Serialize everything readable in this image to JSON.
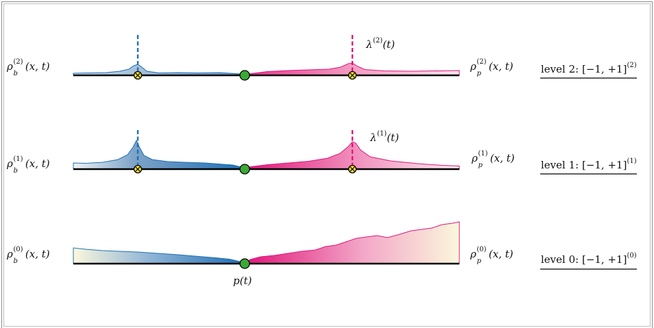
{
  "diagram": {
    "levels": [
      {
        "id": 2,
        "left_label": {
          "sym": "ρ",
          "sub": "b",
          "sup": "(2)",
          "args": "(x, t)"
        },
        "right_label": {
          "sym": "ρ",
          "sub": "p",
          "sup": "(2)",
          "args": "(x, t)"
        },
        "level_label": {
          "prefix": "level 2: ",
          "interval": "[−1, +1]",
          "sup": "(2)"
        },
        "lambda_label": {
          "sym": "λ",
          "sup": "(2)",
          "args": "(t)"
        }
      },
      {
        "id": 1,
        "left_label": {
          "sym": "ρ",
          "sub": "b",
          "sup": "(1)",
          "args": "(x, t)"
        },
        "right_label": {
          "sym": "ρ",
          "sub": "p",
          "sup": "(1)",
          "args": "(x, t)"
        },
        "level_label": {
          "prefix": "level 1: ",
          "interval": "[−1, +1]",
          "sup": "(1)"
        },
        "lambda_label": {
          "sym": "λ",
          "sup": "(1)",
          "args": "(t)"
        }
      },
      {
        "id": 0,
        "left_label": {
          "sym": "ρ",
          "sub": "b",
          "sup": "(0)",
          "args": "(x, t)"
        },
        "right_label": {
          "sym": "ρ",
          "sub": "p",
          "sup": "(0)",
          "args": "(x, t)"
        },
        "level_label": {
          "prefix": "level 0: ",
          "interval": "[−1, +1]",
          "sup": "(0)"
        }
      }
    ],
    "price_label": "p(t)",
    "colors": {
      "bid": "#1f6fb5",
      "ask": "#e0167a",
      "price_dot": "#3aaa35",
      "marker": "#f3e23a",
      "axis": "#000000"
    }
  }
}
